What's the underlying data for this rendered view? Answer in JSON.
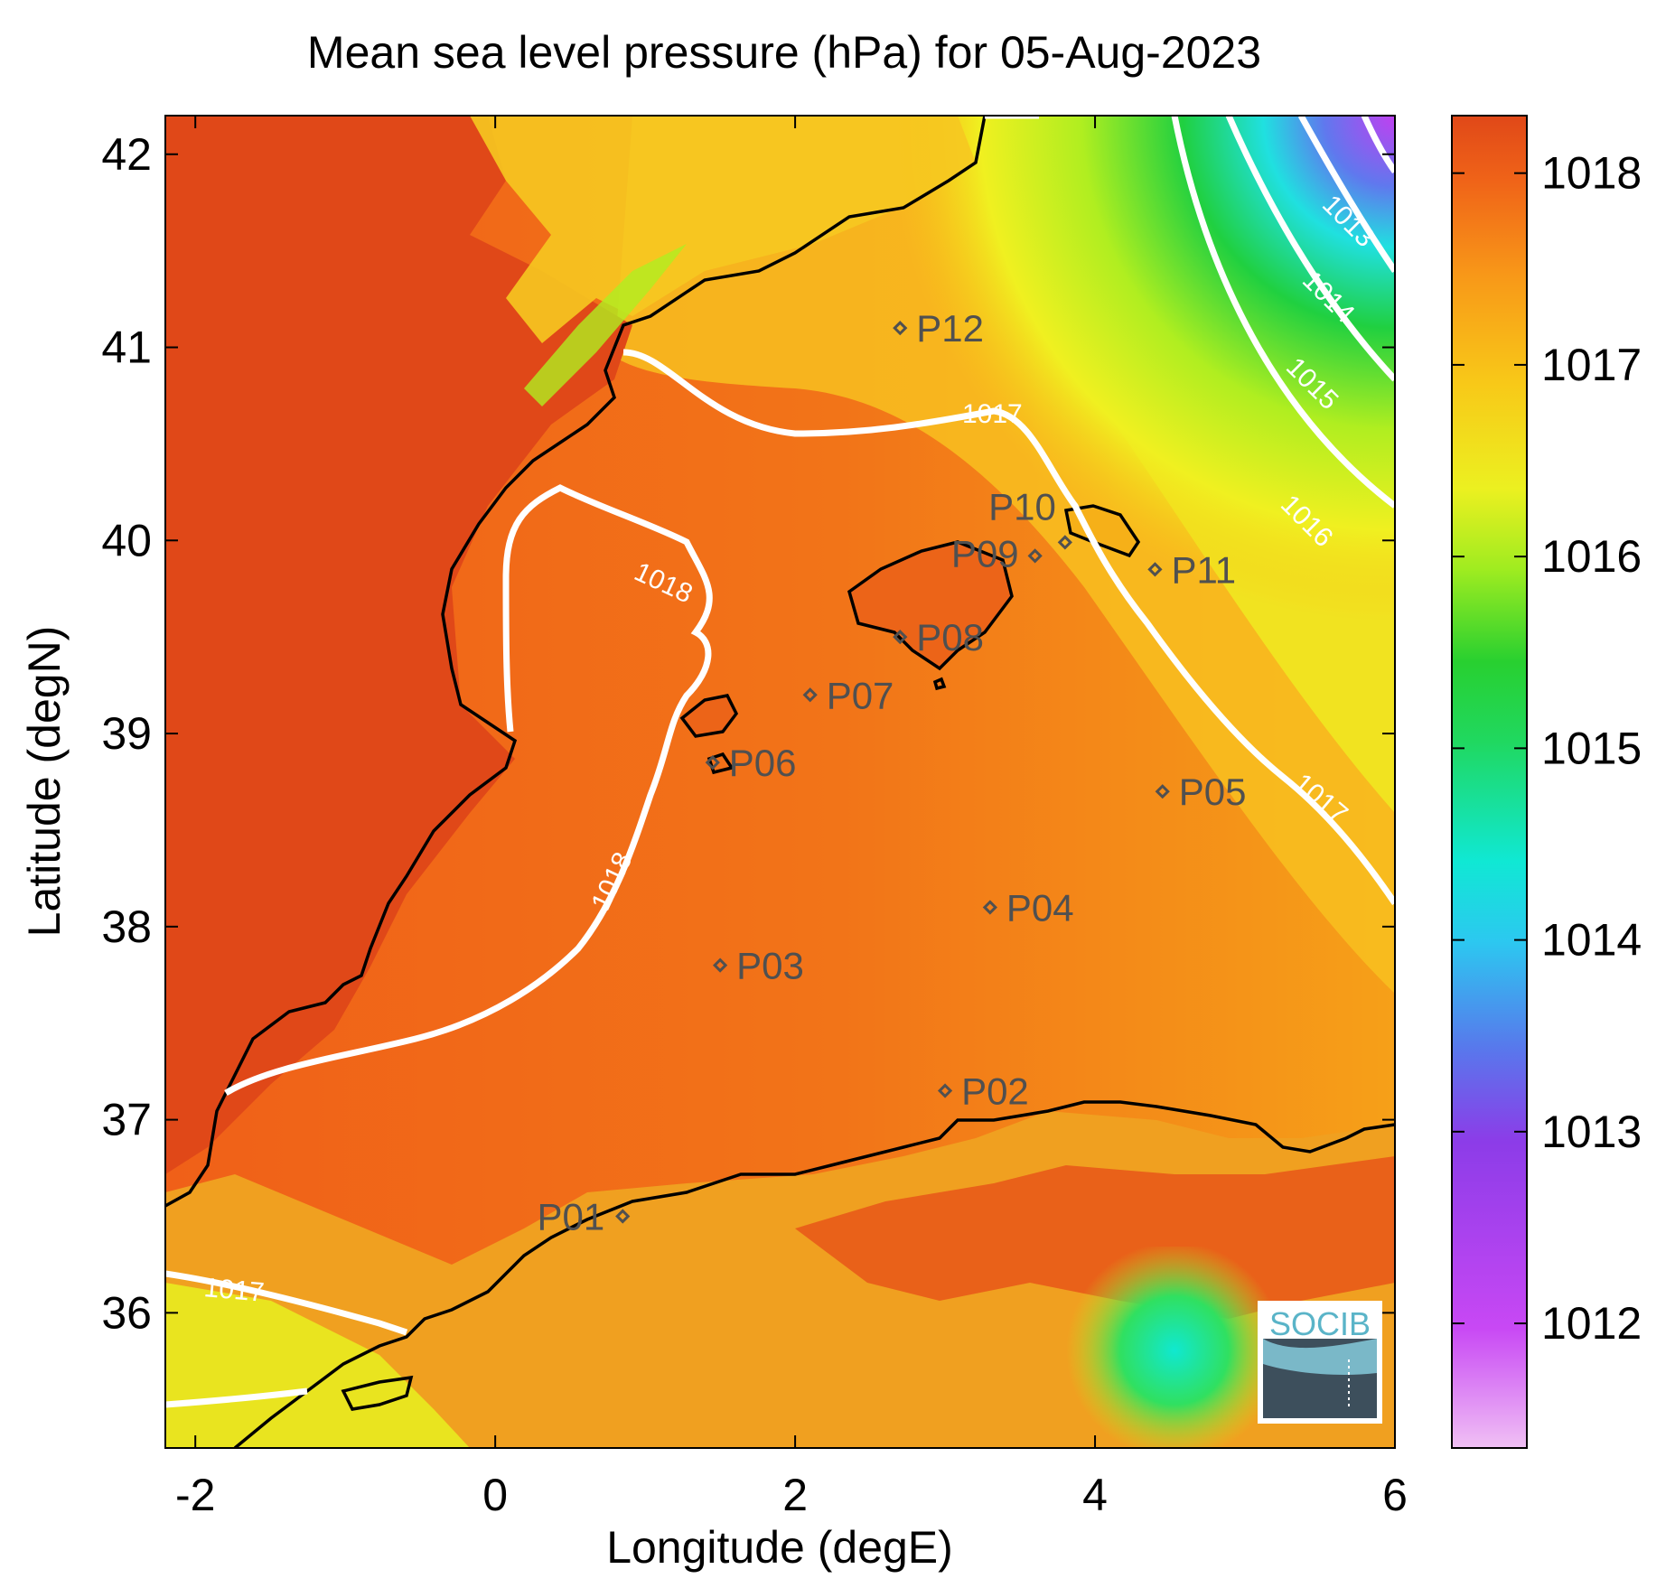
{
  "title": "Mean sea level pressure (hPa) for 05-Aug-2023",
  "x_axis": {
    "label": "Longitude (degE)",
    "range": [
      -2.2,
      6.0
    ],
    "ticks": [
      "-2",
      "0",
      "2",
      "4",
      "6"
    ],
    "tick_values": [
      -2,
      0,
      2,
      4,
      6
    ]
  },
  "y_axis": {
    "label": "Latitude (degN)",
    "range": [
      35.3,
      42.2
    ],
    "ticks": [
      "36",
      "37",
      "38",
      "39",
      "40",
      "41",
      "42"
    ],
    "tick_values": [
      36,
      37,
      38,
      39,
      40,
      41,
      42
    ]
  },
  "colorbar": {
    "range": [
      1011.35,
      1018.3
    ],
    "ticks": [
      "1012",
      "1013",
      "1014",
      "1015",
      "1016",
      "1017",
      "1018"
    ],
    "tick_values": [
      1012,
      1013,
      1014,
      1015,
      1016,
      1017,
      1018
    ],
    "colors": [
      "#e8a8ee",
      "#c040f0",
      "#8040e8",
      "#4090f0",
      "#20e8e0",
      "#20d040",
      "#a8f020",
      "#f0f020",
      "#f8c818",
      "#f87818",
      "#e04818"
    ]
  },
  "contour_labels": [
    "1013",
    "1014",
    "1015",
    "1016",
    "1017",
    "1017",
    "1017",
    "1018",
    "1018"
  ],
  "stations": [
    {
      "id": "P01",
      "lon": 0.85,
      "lat": 36.5
    },
    {
      "id": "P02",
      "lon": 3.0,
      "lat": 37.15
    },
    {
      "id": "P03",
      "lon": 1.5,
      "lat": 37.8
    },
    {
      "id": "P04",
      "lon": 3.3,
      "lat": 38.1
    },
    {
      "id": "P05",
      "lon": 4.45,
      "lat": 38.7
    },
    {
      "id": "P06",
      "lon": 1.45,
      "lat": 38.85
    },
    {
      "id": "P07",
      "lon": 2.1,
      "lat": 39.2
    },
    {
      "id": "P08",
      "lon": 2.7,
      "lat": 39.5
    },
    {
      "id": "P09",
      "lon": 3.6,
      "lat": 39.92
    },
    {
      "id": "P10",
      "lon": 3.8,
      "lat": 39.99
    },
    {
      "id": "P11",
      "lon": 4.4,
      "lat": 39.85
    },
    {
      "id": "P12",
      "lon": 2.7,
      "lat": 41.1
    }
  ],
  "logo_text": "SOCIB",
  "colors": {
    "land_high": "#e04818",
    "sea": "#f06a14",
    "coastline": "#000000",
    "contour": "#ffffff",
    "station": "#505050"
  }
}
